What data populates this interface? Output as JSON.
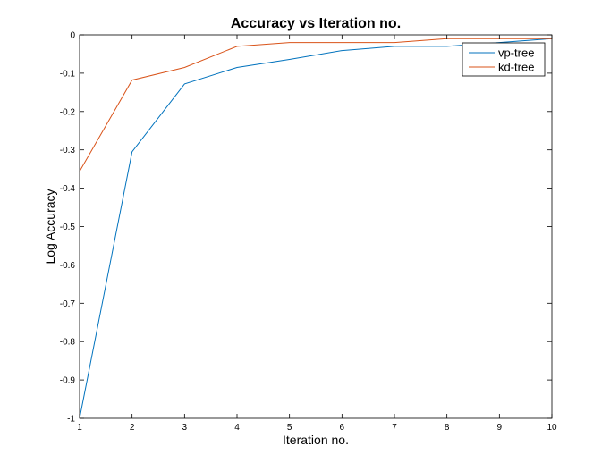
{
  "chart_data": {
    "type": "line",
    "title": "Accuracy vs Iteration no.",
    "xlabel": "Iteration no.",
    "ylabel": "Log Accuracy",
    "xlim": [
      1,
      10
    ],
    "ylim": [
      -1,
      0
    ],
    "x_ticks": [
      1,
      2,
      3,
      4,
      5,
      6,
      7,
      8,
      9,
      10
    ],
    "y_ticks": [
      0,
      -0.1,
      -0.2,
      -0.3,
      -0.4,
      -0.5,
      -0.6,
      -0.7,
      -0.8,
      -0.9,
      -1
    ],
    "y_tick_labels": [
      "0",
      "-0.1",
      "-0.2",
      "-0.3",
      "-0.4",
      "-0.5",
      "-0.6",
      "-0.7",
      "-0.8",
      "-0.9",
      "-1"
    ],
    "grid": false,
    "legend_position": "top-right",
    "x": [
      1,
      2,
      3,
      4,
      5,
      6,
      7,
      8,
      9,
      10
    ],
    "series": [
      {
        "name": "vp-tree",
        "color": "#0072BD",
        "values": [
          -1.0,
          -0.305,
          -0.128,
          -0.085,
          -0.064,
          -0.041,
          -0.03,
          -0.03,
          -0.02,
          -0.01
        ]
      },
      {
        "name": "kd-tree",
        "color": "#D95319",
        "values": [
          -0.356,
          -0.118,
          -0.085,
          -0.03,
          -0.02,
          -0.02,
          -0.02,
          -0.01,
          -0.01,
          -0.01
        ]
      }
    ]
  }
}
